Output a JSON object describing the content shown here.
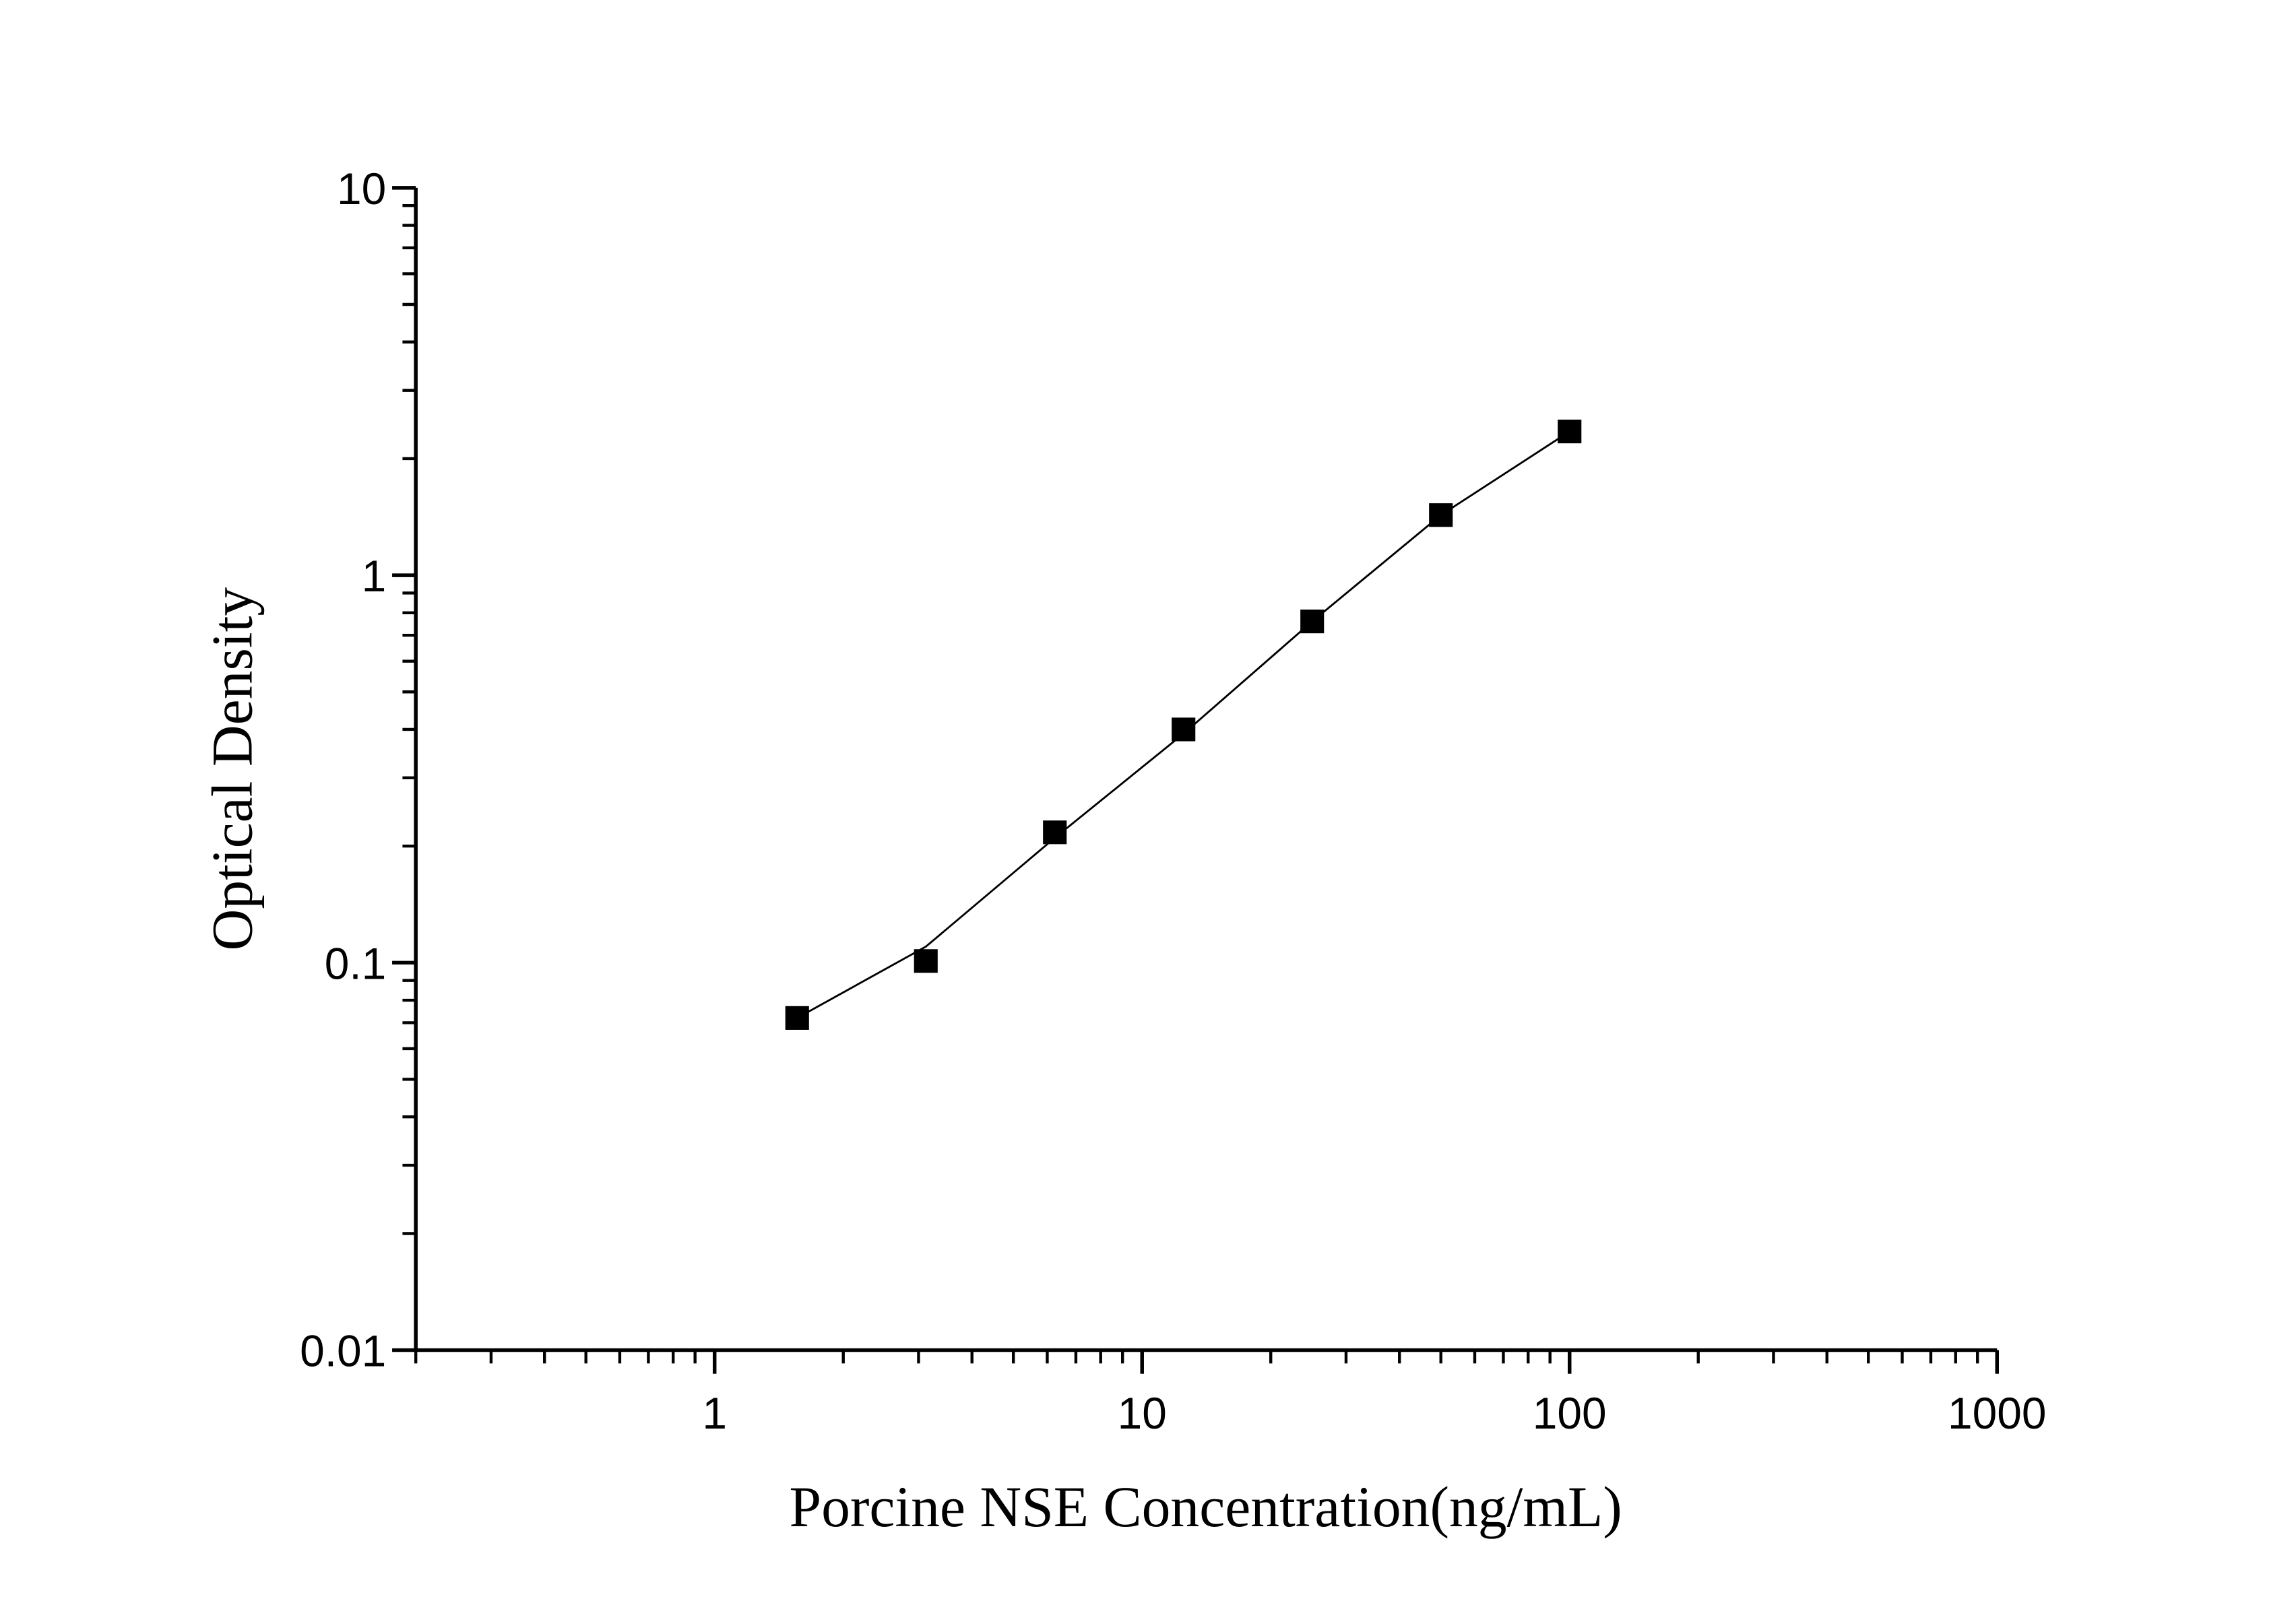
{
  "chart_data": {
    "type": "scatter",
    "xlabel": "Porcine NSE Concentration(ng/mL)",
    "ylabel": "Optical Density",
    "x": [
      1.56,
      3.12,
      6.25,
      12.5,
      25,
      50,
      100
    ],
    "series": [
      {
        "color": "#000000",
        "marker": "square",
        "values": [
          0.072,
          0.101,
          0.217,
          0.4,
          0.76,
          1.43,
          2.35
        ]
      },
      {
        "color": "#000000",
        "style": "line",
        "values": [
          0.072,
          0.11,
          0.21,
          0.39,
          0.76,
          1.43,
          2.35
        ]
      }
    ],
    "xlim": [
      0.2,
      1000
    ],
    "ylim": [
      0.01,
      10
    ],
    "xticks": [
      1,
      10,
      100,
      1000
    ],
    "yticks": [
      0.01,
      0.1,
      1,
      10
    ],
    "xscale": "log",
    "yscale": "log",
    "minor_ticks": true,
    "grid": false
  }
}
